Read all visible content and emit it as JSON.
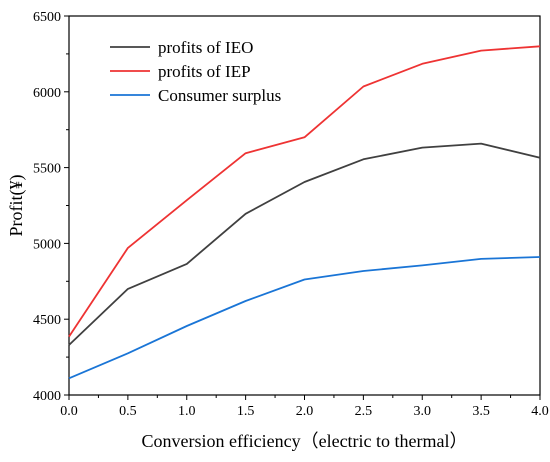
{
  "chart_data": {
    "type": "line",
    "title": "",
    "xlabel": "Conversion efficiency（electric to thermal）",
    "ylabel": "Profit(¥)",
    "xlim": [
      0,
      4.0
    ],
    "ylim": [
      4000,
      6500
    ],
    "x_ticks": [
      "0.0",
      "0.5",
      "1.0",
      "1.5",
      "2.0",
      "2.5",
      "3.0",
      "3.5",
      "4.0"
    ],
    "y_ticks": [
      "4000",
      "4500",
      "5000",
      "5500",
      "6000",
      "6500"
    ],
    "grid": false,
    "legend_position": "top-left",
    "x": [
      0,
      0.5,
      1.0,
      1.5,
      2.0,
      2.5,
      3.0,
      3.5,
      4.0
    ],
    "series": [
      {
        "name": "profits of IEO",
        "color": "#404040",
        "values": [
          4330,
          4700,
          4865,
          5195,
          5405,
          5555,
          5632,
          5658,
          5565
        ]
      },
      {
        "name": "profits of IEP",
        "color": "#ee3333",
        "values": [
          4385,
          4970,
          5285,
          5595,
          5700,
          6035,
          6185,
          6272,
          6300
        ]
      },
      {
        "name": "Consumer surplus",
        "color": "#1a75d6",
        "values": [
          4110,
          4275,
          4455,
          4620,
          4762,
          4818,
          4855,
          4898,
          4910
        ]
      }
    ]
  }
}
